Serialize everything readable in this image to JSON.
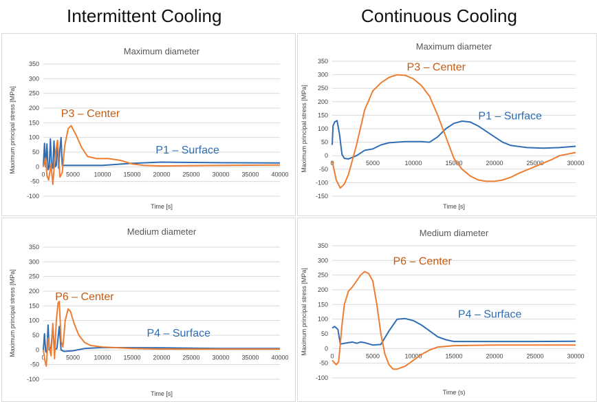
{
  "headers": {
    "left": "Intermittent Cooling",
    "right": "Continuous Cooling"
  },
  "colors": {
    "surface": "#2e6db4",
    "center": "#ed7d31",
    "grid": "#d9d9d9",
    "title": "#595959",
    "axis_text": "#404040"
  },
  "chart_data": [
    {
      "type": "line",
      "title": "Maximum diameter",
      "xlabel": "Time [s]",
      "ylabel": "Maximum principal stress [MPa]",
      "xlim": [
        0,
        40000
      ],
      "xticks": [
        0,
        5000,
        10000,
        15000,
        20000,
        25000,
        30000,
        35000,
        40000
      ],
      "ylim": [
        -100,
        350
      ],
      "yticks": [
        -100,
        -50,
        0,
        50,
        100,
        150,
        200,
        250,
        300,
        350
      ],
      "grid": true,
      "series": [
        {
          "name": "P1 – Surface",
          "color": "#2e6db4",
          "points": [
            [
              0,
              0
            ],
            [
              200,
              80
            ],
            [
              400,
              0
            ],
            [
              600,
              78
            ],
            [
              800,
              -10
            ],
            [
              1000,
              0
            ],
            [
              1200,
              95
            ],
            [
              1400,
              0
            ],
            [
              1600,
              -5
            ],
            [
              1800,
              88
            ],
            [
              2000,
              0
            ],
            [
              2200,
              5
            ],
            [
              2400,
              90
            ],
            [
              2600,
              -5
            ],
            [
              2800,
              60
            ],
            [
              3000,
              100
            ],
            [
              3200,
              5
            ],
            [
              3600,
              5
            ],
            [
              5000,
              5
            ],
            [
              10000,
              5
            ],
            [
              15000,
              12
            ],
            [
              20000,
              16
            ],
            [
              30000,
              14
            ],
            [
              40000,
              13
            ]
          ]
        },
        {
          "name": "P3 – Center",
          "color": "#ed7d31",
          "points": [
            [
              0,
              0
            ],
            [
              400,
              30
            ],
            [
              600,
              -30
            ],
            [
              900,
              -45
            ],
            [
              1300,
              10
            ],
            [
              1600,
              -60
            ],
            [
              2000,
              40
            ],
            [
              2400,
              90
            ],
            [
              2800,
              -35
            ],
            [
              3200,
              -20
            ],
            [
              3600,
              70
            ],
            [
              4200,
              130
            ],
            [
              4700,
              140
            ],
            [
              5500,
              110
            ],
            [
              6500,
              65
            ],
            [
              7500,
              35
            ],
            [
              9000,
              28
            ],
            [
              11000,
              28
            ],
            [
              13000,
              22
            ],
            [
              15000,
              10
            ],
            [
              17000,
              5
            ],
            [
              20000,
              3
            ],
            [
              25000,
              4
            ],
            [
              30000,
              5
            ],
            [
              40000,
              6
            ]
          ]
        }
      ]
    },
    {
      "type": "line",
      "title": "Maximum diameter",
      "xlabel": "Time [s]",
      "ylabel": "Maximum principal stress [MPa]",
      "xlim": [
        0,
        30000
      ],
      "xticks": [
        0,
        5000,
        10000,
        15000,
        20000,
        25000,
        30000
      ],
      "ylim": [
        -150,
        350
      ],
      "yticks": [
        -150,
        -100,
        -50,
        0,
        50,
        100,
        150,
        200,
        250,
        300,
        350
      ],
      "grid": true,
      "series": [
        {
          "name": "P1 – Surface",
          "color": "#2e6db4",
          "points": [
            [
              0,
              40
            ],
            [
              100,
              110
            ],
            [
              300,
              125
            ],
            [
              600,
              130
            ],
            [
              900,
              80
            ],
            [
              1200,
              5
            ],
            [
              1500,
              -10
            ],
            [
              2000,
              -12
            ],
            [
              3000,
              0
            ],
            [
              4000,
              20
            ],
            [
              5000,
              25
            ],
            [
              6000,
              40
            ],
            [
              7000,
              48
            ],
            [
              9000,
              52
            ],
            [
              11000,
              52
            ],
            [
              12000,
              50
            ],
            [
              13000,
              70
            ],
            [
              14000,
              100
            ],
            [
              15000,
              120
            ],
            [
              16000,
              128
            ],
            [
              17000,
              125
            ],
            [
              18000,
              110
            ],
            [
              19000,
              90
            ],
            [
              20000,
              70
            ],
            [
              21000,
              50
            ],
            [
              22000,
              38
            ],
            [
              24000,
              30
            ],
            [
              26000,
              28
            ],
            [
              28000,
              30
            ],
            [
              30000,
              35
            ]
          ]
        },
        {
          "name": "P3 – Center",
          "color": "#ed7d31",
          "points": [
            [
              0,
              -20
            ],
            [
              500,
              -90
            ],
            [
              1000,
              -120
            ],
            [
              1500,
              -105
            ],
            [
              2000,
              -70
            ],
            [
              3000,
              40
            ],
            [
              4000,
              170
            ],
            [
              5000,
              240
            ],
            [
              6000,
              270
            ],
            [
              7000,
              290
            ],
            [
              8000,
              300
            ],
            [
              9000,
              298
            ],
            [
              10000,
              285
            ],
            [
              11000,
              260
            ],
            [
              12000,
              220
            ],
            [
              13000,
              150
            ],
            [
              14000,
              70
            ],
            [
              15000,
              -10
            ],
            [
              16000,
              -50
            ],
            [
              17000,
              -75
            ],
            [
              18000,
              -90
            ],
            [
              19000,
              -95
            ],
            [
              20000,
              -95
            ],
            [
              21000,
              -90
            ],
            [
              22000,
              -80
            ],
            [
              23000,
              -65
            ],
            [
              25000,
              -40
            ],
            [
              27000,
              -15
            ],
            [
              28000,
              0
            ],
            [
              30000,
              12
            ]
          ]
        }
      ]
    },
    {
      "type": "line",
      "title": "Medium diameter",
      "xlabel": "Time [s]",
      "ylabel": "Maximum principal stress [MPa]",
      "xlim": [
        0,
        40000
      ],
      "xticks": [
        0,
        5000,
        10000,
        15000,
        20000,
        25000,
        30000,
        35000,
        40000
      ],
      "ylim": [
        -100,
        350
      ],
      "yticks": [
        -100,
        -50,
        0,
        50,
        100,
        150,
        200,
        250,
        300,
        350
      ],
      "grid": true,
      "series": [
        {
          "name": "P4 – Surface",
          "color": "#2e6db4",
          "points": [
            [
              0,
              0
            ],
            [
              200,
              55
            ],
            [
              400,
              -5
            ],
            [
              600,
              -10
            ],
            [
              800,
              85
            ],
            [
              1000,
              0
            ],
            [
              1300,
              10
            ],
            [
              1600,
              80
            ],
            [
              1900,
              0
            ],
            [
              2300,
              5
            ],
            [
              2700,
              80
            ],
            [
              3000,
              0
            ],
            [
              3500,
              -5
            ],
            [
              5000,
              -3
            ],
            [
              7000,
              5
            ],
            [
              10000,
              8
            ],
            [
              20000,
              7
            ],
            [
              30000,
              5
            ],
            [
              40000,
              5
            ]
          ]
        },
        {
          "name": "P6 – Center",
          "color": "#ed7d31",
          "points": [
            [
              0,
              0
            ],
            [
              300,
              -40
            ],
            [
              500,
              -55
            ],
            [
              800,
              40
            ],
            [
              1000,
              10
            ],
            [
              1300,
              -20
            ],
            [
              1600,
              90
            ],
            [
              1900,
              -30
            ],
            [
              2200,
              100
            ],
            [
              2500,
              160
            ],
            [
              2700,
              165
            ],
            [
              3000,
              30
            ],
            [
              3300,
              10
            ],
            [
              3700,
              100
            ],
            [
              4200,
              140
            ],
            [
              4600,
              130
            ],
            [
              5200,
              90
            ],
            [
              6000,
              50
            ],
            [
              7000,
              25
            ],
            [
              8000,
              15
            ],
            [
              10000,
              10
            ],
            [
              15000,
              5
            ],
            [
              20000,
              3
            ],
            [
              40000,
              3
            ]
          ]
        }
      ]
    },
    {
      "type": "line",
      "title": "Medium diameter",
      "xlabel": "Time (s)",
      "ylabel": "Maximum principal stress [MPa]",
      "xlim": [
        0,
        30000
      ],
      "xticks": [
        0,
        5000,
        10000,
        15000,
        20000,
        25000,
        30000
      ],
      "ylim": [
        -100,
        350
      ],
      "yticks": [
        -100,
        -50,
        0,
        50,
        100,
        150,
        200,
        250,
        300,
        350
      ],
      "grid": true,
      "series": [
        {
          "name": "P4 – Surface",
          "color": "#2e6db4",
          "points": [
            [
              0,
              70
            ],
            [
              300,
              75
            ],
            [
              700,
              65
            ],
            [
              1000,
              15
            ],
            [
              1500,
              18
            ],
            [
              2000,
              20
            ],
            [
              2500,
              22
            ],
            [
              3000,
              18
            ],
            [
              3500,
              22
            ],
            [
              4000,
              20
            ],
            [
              5000,
              12
            ],
            [
              6000,
              14
            ],
            [
              7000,
              60
            ],
            [
              8000,
              100
            ],
            [
              9000,
              102
            ],
            [
              10000,
              95
            ],
            [
              11000,
              80
            ],
            [
              12000,
              60
            ],
            [
              13000,
              40
            ],
            [
              14000,
              30
            ],
            [
              15000,
              24
            ],
            [
              20000,
              24
            ],
            [
              25000,
              24
            ],
            [
              30000,
              25
            ]
          ]
        },
        {
          "name": "P6 – Center",
          "color": "#ed7d31",
          "points": [
            [
              0,
              -40
            ],
            [
              500,
              -55
            ],
            [
              800,
              -45
            ],
            [
              1200,
              80
            ],
            [
              1500,
              150
            ],
            [
              2000,
              195
            ],
            [
              2500,
              210
            ],
            [
              3000,
              230
            ],
            [
              3500,
              250
            ],
            [
              4000,
              262
            ],
            [
              4500,
              255
            ],
            [
              5000,
              230
            ],
            [
              5500,
              150
            ],
            [
              6000,
              50
            ],
            [
              6500,
              -20
            ],
            [
              7000,
              -55
            ],
            [
              7500,
              -70
            ],
            [
              8000,
              -70
            ],
            [
              9000,
              -60
            ],
            [
              10000,
              -40
            ],
            [
              11000,
              -20
            ],
            [
              12000,
              -5
            ],
            [
              13000,
              5
            ],
            [
              15000,
              10
            ],
            [
              20000,
              12
            ],
            [
              30000,
              12
            ]
          ]
        }
      ]
    }
  ],
  "annotations": [
    {
      "text": "P3 –  Center",
      "color": "#c55a11",
      "dx": 3000,
      "dy": 170
    },
    {
      "text": "P1 – Surface",
      "color": "#2e6db4",
      "dx": 19000,
      "dy": 45
    },
    {
      "text": "P3 –  Center",
      "color": "#c55a11",
      "dx": 9200,
      "dy": 315
    },
    {
      "text": "P1 – Surface",
      "color": "#2e6db4",
      "dx": 18000,
      "dy": 135
    },
    {
      "text": "P6 –  Center",
      "color": "#c55a11",
      "dx": 2000,
      "dy": 170
    },
    {
      "text": "P4 – Surface",
      "color": "#2e6db4",
      "dx": 17500,
      "dy": 45
    },
    {
      "text": "P6 –  Center",
      "color": "#c55a11",
      "dx": 7500,
      "dy": 285
    },
    {
      "text": "P4 – Surface",
      "color": "#2e6db4",
      "dx": 15500,
      "dy": 105
    }
  ]
}
